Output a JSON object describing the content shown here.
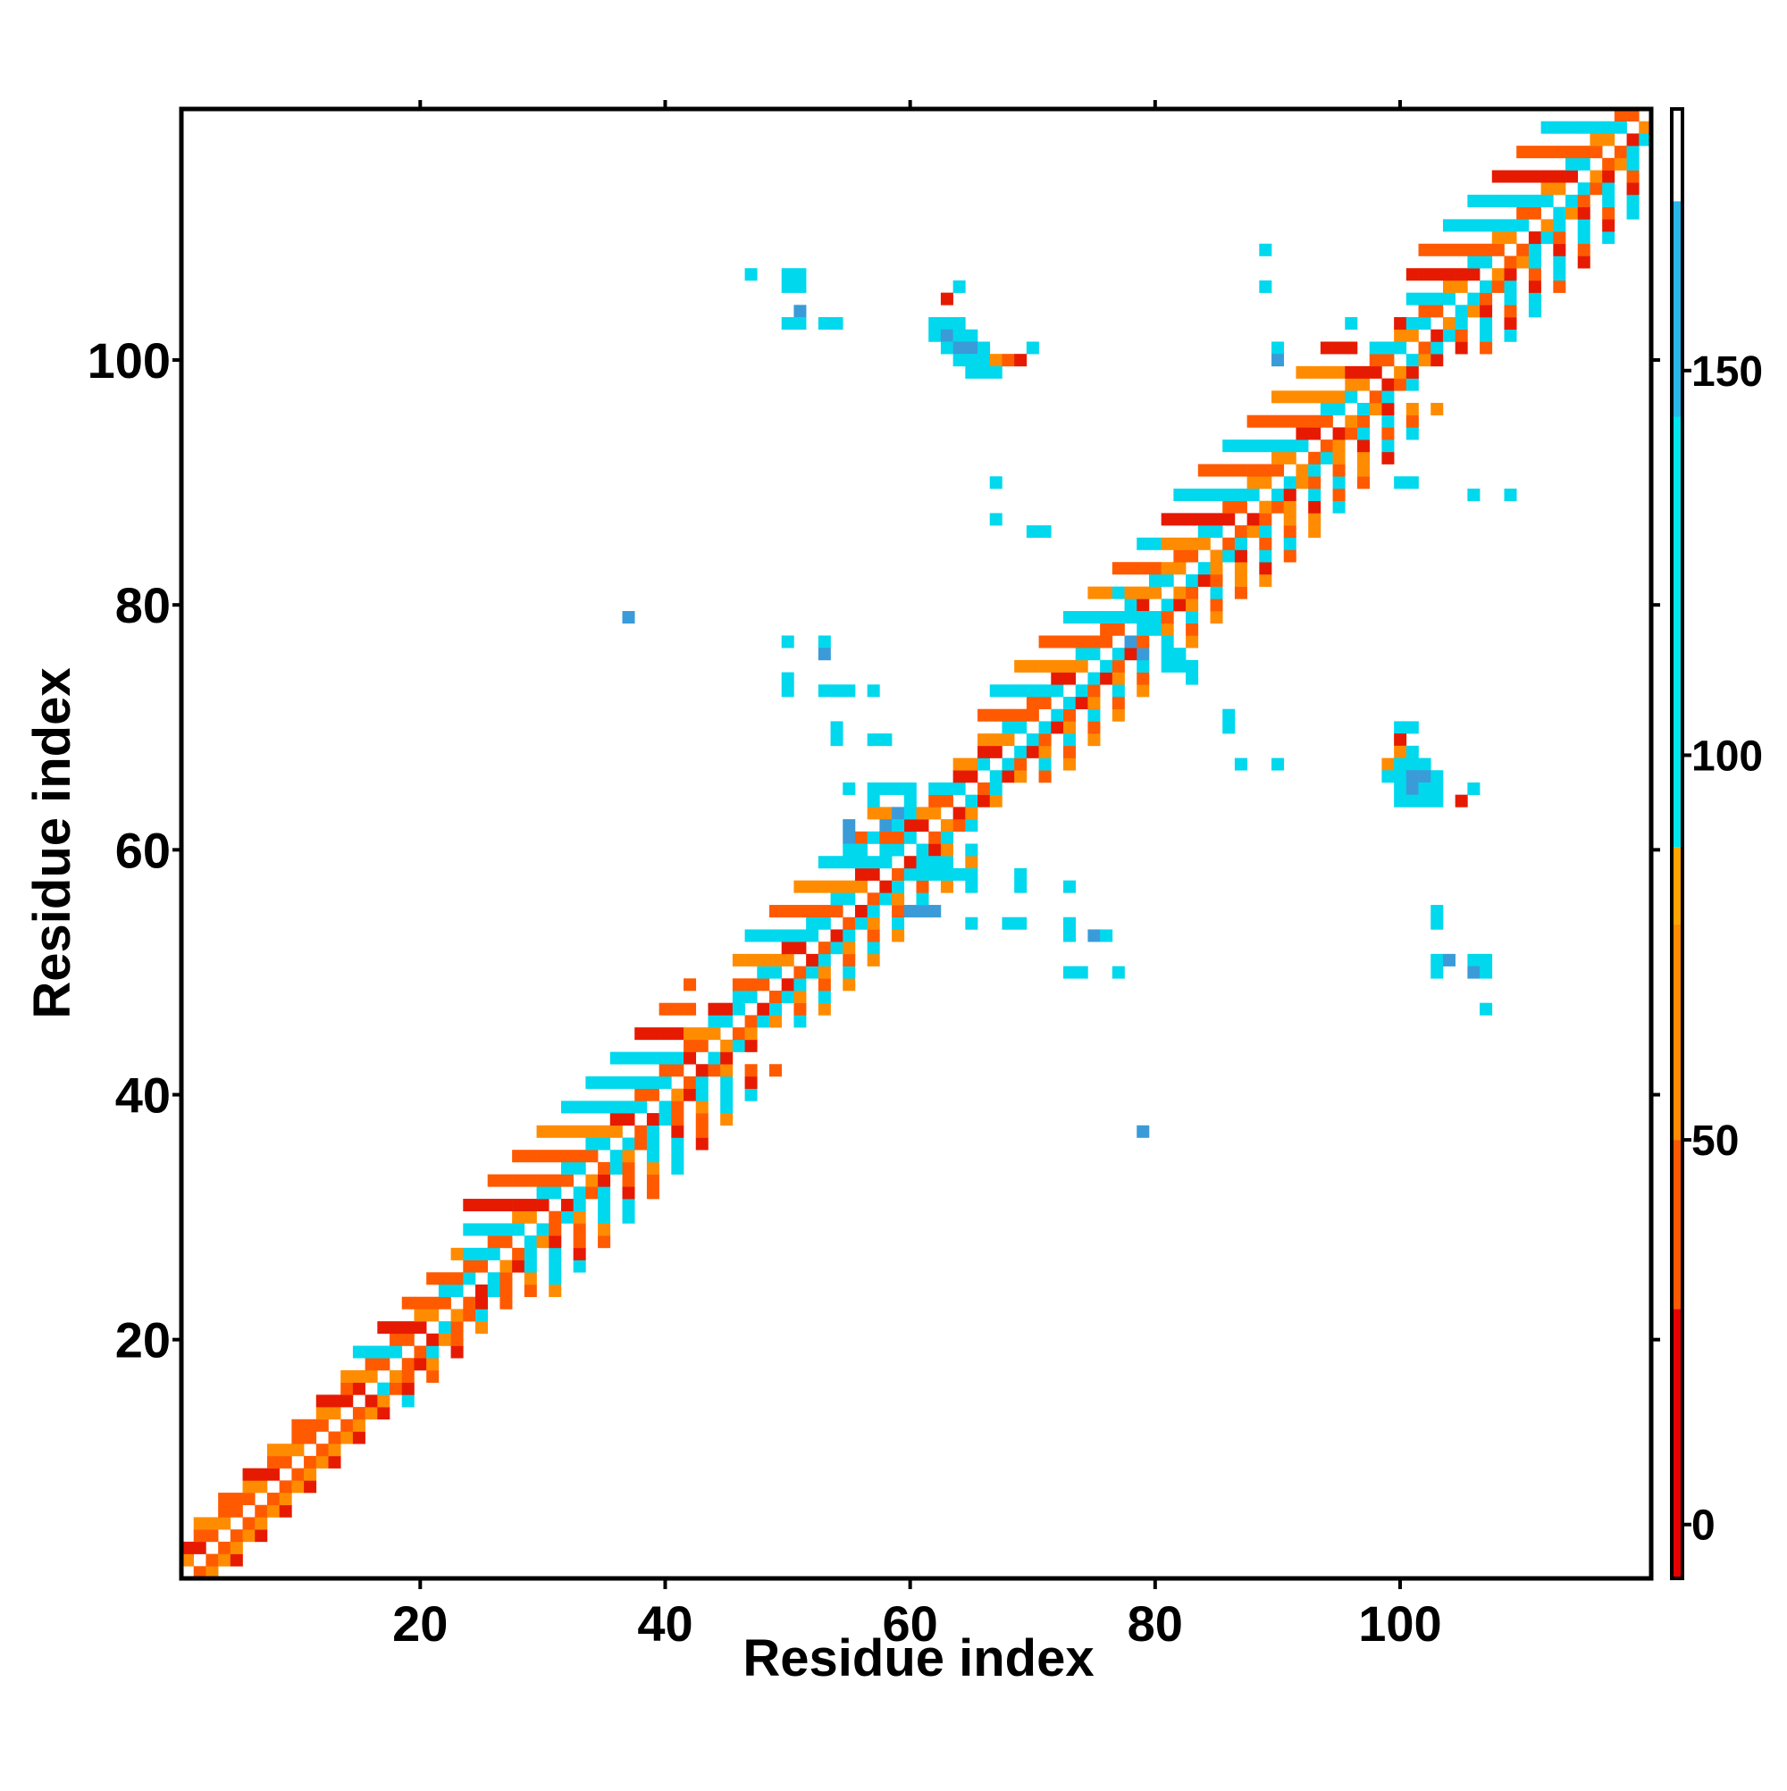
{
  "chart_data": {
    "type": "heatmap",
    "title": "",
    "xlabel": "Residue index",
    "ylabel": "Residue index",
    "xlim": [
      0.5,
      120.5
    ],
    "ylim": [
      0.5,
      120.5
    ],
    "x_ticks": [
      20,
      40,
      60,
      80,
      100
    ],
    "y_ticks": [
      20,
      40,
      60,
      80,
      100
    ],
    "grid": false,
    "colorbar": {
      "range": [
        -7,
        184
      ],
      "ticks": [
        0,
        50,
        100,
        150
      ],
      "bands": [
        {
          "from": -7,
          "to": 28,
          "color": "#e60000"
        },
        {
          "from": 28,
          "to": 50,
          "color": "#ff5a00"
        },
        {
          "from": 50,
          "to": 78,
          "color": "#ff8c00"
        },
        {
          "from": 78,
          "to": 88,
          "color": "#ffa500"
        },
        {
          "from": 88,
          "to": 144,
          "color": "#00e5ee"
        },
        {
          "from": 144,
          "to": 172,
          "color": "#29b6e8"
        },
        {
          "from": 172,
          "to": 184,
          "color": "#4a7fc0"
        }
      ]
    },
    "diagonal_band": {
      "description_color_codes": "0=red,1=orange-red,2=orange,3=cyan,4=blue-cyan",
      "segments": [
        {
          "from": 1,
          "to": 15,
          "halfwidth": 3,
          "pattern": [
            1,
            1,
            2,
            0,
            1,
            2
          ]
        },
        {
          "from": 15,
          "to": 24,
          "halfwidth": 4,
          "pattern": [
            1,
            0,
            2,
            1,
            3
          ]
        },
        {
          "from": 24,
          "to": 42,
          "halfwidth": 7,
          "pattern": [
            1,
            3,
            2,
            0,
            3,
            1,
            3
          ]
        },
        {
          "from": 42,
          "to": 46,
          "halfwidth": 3,
          "pattern": [
            1,
            2,
            3,
            0
          ]
        },
        {
          "from": 46,
          "to": 60,
          "halfwidth": 6,
          "pattern": [
            3,
            1,
            3,
            2,
            0,
            3
          ]
        },
        {
          "from": 60,
          "to": 66,
          "halfwidth": 3,
          "pattern": [
            1,
            3,
            0,
            2
          ]
        },
        {
          "from": 66,
          "to": 81,
          "halfwidth": 6,
          "pattern": [
            1,
            3,
            0,
            2,
            3,
            1
          ]
        },
        {
          "from": 81,
          "to": 96,
          "halfwidth": 7,
          "pattern": [
            1,
            2,
            3,
            0,
            1,
            3,
            2
          ]
        },
        {
          "from": 96,
          "to": 101,
          "halfwidth": 3,
          "pattern": [
            1,
            3,
            2,
            0
          ]
        },
        {
          "from": 101,
          "to": 120,
          "halfwidth": 7,
          "pattern": [
            1,
            3,
            2,
            0,
            3,
            1,
            2,
            3
          ]
        }
      ]
    },
    "contacts": [
      [
        47,
        107,
        3
      ],
      [
        50,
        107,
        3
      ],
      [
        51,
        107,
        3
      ],
      [
        50,
        106,
        3
      ],
      [
        51,
        106,
        3
      ],
      [
        51,
        104,
        4
      ],
      [
        50,
        103,
        3
      ],
      [
        51,
        103,
        3
      ],
      [
        53,
        103,
        3
      ],
      [
        54,
        103,
        3
      ],
      [
        64,
        106,
        3
      ],
      [
        63,
        105,
        0
      ],
      [
        62,
        103,
        3
      ],
      [
        63,
        103,
        3
      ],
      [
        64,
        103,
        3
      ],
      [
        62,
        102,
        3
      ],
      [
        63,
        102,
        4
      ],
      [
        64,
        102,
        3
      ],
      [
        65,
        102,
        3
      ],
      [
        63,
        101,
        3
      ],
      [
        64,
        101,
        4
      ],
      [
        65,
        101,
        4
      ],
      [
        66,
        101,
        3
      ],
      [
        64,
        100,
        3
      ],
      [
        65,
        100,
        3
      ],
      [
        66,
        100,
        3
      ],
      [
        67,
        100,
        2
      ],
      [
        65,
        99,
        3
      ],
      [
        66,
        99,
        3
      ],
      [
        67,
        99,
        3
      ],
      [
        68,
        100,
        1
      ],
      [
        69,
        100,
        0
      ],
      [
        70,
        101,
        3
      ],
      [
        89,
        109,
        3
      ],
      [
        89,
        106,
        3
      ],
      [
        90,
        101,
        3
      ],
      [
        90,
        100,
        4
      ],
      [
        67,
        90,
        3
      ],
      [
        67,
        87,
        3
      ],
      [
        70,
        86,
        3
      ],
      [
        71,
        86,
        3
      ],
      [
        100,
        90,
        3
      ],
      [
        101,
        90,
        3
      ],
      [
        106,
        89,
        3
      ],
      [
        109,
        89,
        3
      ],
      [
        37,
        79,
        4
      ],
      [
        50,
        77,
        3
      ],
      [
        53,
        77,
        3
      ],
      [
        53,
        76,
        4
      ],
      [
        50,
        74,
        3
      ],
      [
        50,
        73,
        3
      ],
      [
        53,
        73,
        3
      ],
      [
        54,
        73,
        3
      ],
      [
        55,
        73,
        3
      ],
      [
        57,
        73,
        3
      ],
      [
        54,
        70,
        3
      ],
      [
        54,
        69,
        3
      ],
      [
        57,
        69,
        3
      ],
      [
        58,
        69,
        3
      ],
      [
        86,
        71,
        3
      ],
      [
        86,
        70,
        3
      ],
      [
        87,
        67,
        3
      ],
      [
        90,
        67,
        3
      ],
      [
        100,
        70,
        3
      ],
      [
        101,
        70,
        3
      ],
      [
        100,
        69,
        0
      ],
      [
        100,
        68,
        2
      ],
      [
        101,
        68,
        3
      ],
      [
        99,
        67,
        2
      ],
      [
        100,
        67,
        3
      ],
      [
        101,
        67,
        3
      ],
      [
        102,
        67,
        3
      ],
      [
        99,
        66,
        3
      ],
      [
        100,
        66,
        3
      ],
      [
        101,
        66,
        4
      ],
      [
        102,
        66,
        4
      ],
      [
        103,
        66,
        3
      ],
      [
        100,
        65,
        3
      ],
      [
        101,
        65,
        4
      ],
      [
        102,
        65,
        3
      ],
      [
        103,
        65,
        3
      ],
      [
        100,
        64,
        3
      ],
      [
        101,
        64,
        3
      ],
      [
        102,
        64,
        3
      ],
      [
        103,
        64,
        3
      ],
      [
        106,
        65,
        3
      ],
      [
        105,
        64,
        0
      ],
      [
        55,
        65,
        3
      ],
      [
        57,
        65,
        3
      ],
      [
        58,
        65,
        3
      ],
      [
        57,
        64,
        3
      ],
      [
        55,
        62,
        4
      ],
      [
        55,
        61,
        4
      ],
      [
        55,
        60,
        3
      ],
      [
        56,
        60,
        3
      ],
      [
        57,
        61,
        3
      ],
      [
        58,
        62,
        4
      ],
      [
        59,
        63,
        4
      ],
      [
        59,
        62,
        3
      ],
      [
        60,
        63,
        3
      ],
      [
        60,
        64,
        3
      ],
      [
        61,
        58,
        3
      ],
      [
        62,
        58,
        3
      ],
      [
        63,
        58,
        3
      ],
      [
        64,
        58,
        3
      ],
      [
        65,
        58,
        3
      ],
      [
        62,
        59,
        3
      ],
      [
        63,
        59,
        3
      ],
      [
        65,
        57,
        3
      ],
      [
        69,
        57,
        3
      ],
      [
        73,
        57,
        3
      ],
      [
        69,
        58,
        3
      ],
      [
        60,
        55,
        4
      ],
      [
        61,
        55,
        4
      ],
      [
        62,
        55,
        4
      ],
      [
        65,
        54,
        3
      ],
      [
        68,
        54,
        3
      ],
      [
        69,
        54,
        3
      ],
      [
        73,
        54,
        3
      ],
      [
        73,
        53,
        3
      ],
      [
        75,
        53,
        4
      ],
      [
        76,
        53,
        3
      ],
      [
        73,
        50,
        3
      ],
      [
        74,
        50,
        3
      ],
      [
        77,
        50,
        3
      ],
      [
        103,
        55,
        3
      ],
      [
        103,
        54,
        3
      ],
      [
        103,
        51,
        3
      ],
      [
        104,
        51,
        4
      ],
      [
        106,
        51,
        3
      ],
      [
        107,
        51,
        3
      ],
      [
        103,
        50,
        3
      ],
      [
        106,
        50,
        4
      ],
      [
        107,
        50,
        3
      ],
      [
        107,
        47,
        3
      ],
      [
        79,
        37,
        4
      ],
      [
        77,
        81,
        3
      ],
      [
        78,
        80,
        3
      ],
      [
        79,
        79,
        3
      ],
      [
        80,
        78,
        3
      ],
      [
        81,
        76,
        3
      ],
      [
        82,
        76,
        3
      ],
      [
        81,
        75,
        3
      ],
      [
        82,
        75,
        3
      ],
      [
        83,
        75,
        3
      ],
      [
        83,
        74,
        3
      ],
      [
        78,
        77,
        4
      ],
      [
        79,
        76,
        4
      ]
    ]
  }
}
